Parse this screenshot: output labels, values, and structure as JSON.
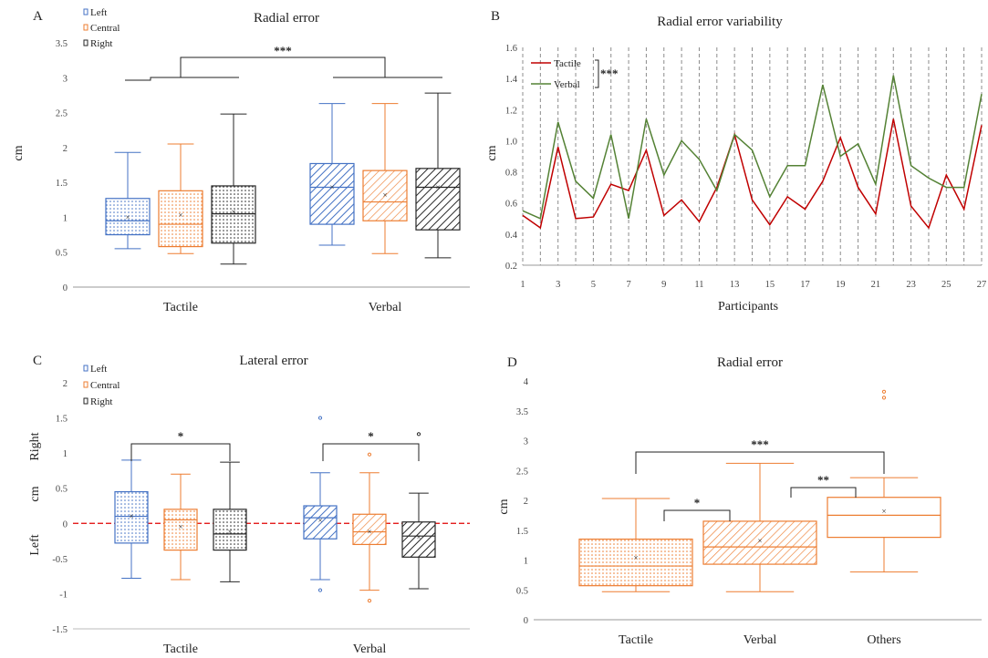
{
  "colors": {
    "left": "#4472c4",
    "central": "#ed7d31",
    "right": "#262626",
    "tactile": "#c00000",
    "verbal": "#548235",
    "zero_line": "#e00000"
  },
  "chart_data": [
    {
      "panel": "A",
      "type": "box",
      "title": "Radial error",
      "ylabel": "cm",
      "ylim": [
        0,
        3.5
      ],
      "yticks": [
        "0",
        "0.5",
        "1",
        "1.5",
        "2",
        "2.5",
        "3",
        "3.5"
      ],
      "categories": [
        "Tactile",
        "Verbal"
      ],
      "legend": [
        "Left",
        "Central",
        "Right"
      ],
      "series": [
        {
          "name": "Left",
          "boxes": [
            {
              "min": 0.55,
              "q1": 0.75,
              "median": 0.95,
              "q3": 1.27,
              "max": 1.93,
              "mean": 1.0
            },
            {
              "min": 0.6,
              "q1": 0.9,
              "median": 1.43,
              "q3": 1.77,
              "max": 2.63,
              "mean": 1.43
            }
          ]
        },
        {
          "name": "Central",
          "boxes": [
            {
              "min": 0.48,
              "q1": 0.58,
              "median": 0.9,
              "q3": 1.38,
              "max": 2.05,
              "mean": 1.03
            },
            {
              "min": 0.48,
              "q1": 0.95,
              "median": 1.22,
              "q3": 1.67,
              "max": 2.63,
              "mean": 1.32
            }
          ]
        },
        {
          "name": "Right",
          "boxes": [
            {
              "min": 0.33,
              "q1": 0.63,
              "median": 1.05,
              "q3": 1.45,
              "max": 2.48,
              "mean": 1.08
            },
            {
              "min": 0.42,
              "q1": 0.82,
              "median": 1.43,
              "q3": 1.7,
              "max": 2.78,
              "mean": 1.43
            }
          ]
        }
      ],
      "annotations": [
        "***"
      ]
    },
    {
      "panel": "B",
      "type": "line",
      "title": "Radial error variability",
      "xlabel": "Participants",
      "ylabel": "cm",
      "ylim": [
        0.2,
        1.6
      ],
      "yticks": [
        "0.2",
        "0.4",
        "0.6",
        "0.8",
        "1.0",
        "1.2",
        "1.4",
        "1.6"
      ],
      "xticks": [
        "1",
        "3",
        "5",
        "7",
        "9",
        "11",
        "13",
        "15",
        "17",
        "19",
        "21",
        "23",
        "25",
        "27"
      ],
      "x": [
        1,
        2,
        3,
        4,
        5,
        6,
        7,
        8,
        9,
        10,
        11,
        12,
        13,
        14,
        15,
        16,
        17,
        18,
        19,
        20,
        21,
        22,
        23,
        24,
        25,
        26,
        27
      ],
      "series": [
        {
          "name": "Tactile",
          "values": [
            0.52,
            0.44,
            0.96,
            0.5,
            0.51,
            0.72,
            0.68,
            0.94,
            0.52,
            0.62,
            0.48,
            0.7,
            1.04,
            0.62,
            0.46,
            0.64,
            0.56,
            0.74,
            1.02,
            0.7,
            0.53,
            1.14,
            0.58,
            0.44,
            0.78,
            0.56,
            1.1
          ]
        },
        {
          "name": "Verbal",
          "values": [
            0.55,
            0.5,
            1.12,
            0.74,
            0.63,
            1.04,
            0.5,
            1.14,
            0.78,
            1.0,
            0.88,
            0.68,
            1.04,
            0.94,
            0.64,
            0.84,
            0.84,
            1.36,
            0.9,
            0.98,
            0.72,
            1.42,
            0.84,
            0.76,
            0.7,
            0.7,
            1.3
          ]
        }
      ],
      "annotations": [
        "***"
      ]
    },
    {
      "panel": "C",
      "type": "box",
      "title": "Lateral error",
      "ylabel": "cm",
      "ylim": [
        -1.5,
        2
      ],
      "yticks": [
        "-1.5",
        "-1",
        "-0.5",
        "0",
        "0.5",
        "1",
        "1.5",
        "2"
      ],
      "side_labels": [
        "Right",
        "Left"
      ],
      "categories": [
        "Tactile",
        "Verbal"
      ],
      "legend": [
        "Left",
        "Central",
        "Right"
      ],
      "series": [
        {
          "name": "Left",
          "boxes": [
            {
              "min": -0.78,
              "q1": -0.28,
              "median": 0.1,
              "q3": 0.45,
              "max": 0.9,
              "mean": 0.1
            },
            {
              "min": -0.8,
              "q1": -0.22,
              "median": 0.08,
              "q3": 0.25,
              "max": 0.72,
              "mean": 0.04,
              "outliers": [
                1.5,
                -0.95
              ]
            }
          ]
        },
        {
          "name": "Central",
          "boxes": [
            {
              "min": -0.8,
              "q1": -0.38,
              "median": 0.05,
              "q3": 0.2,
              "max": 0.7,
              "mean": -0.05
            },
            {
              "min": -0.95,
              "q1": -0.3,
              "median": -0.12,
              "q3": 0.13,
              "max": 0.72,
              "mean": -0.12,
              "outliers": [
                0.98,
                -1.1
              ]
            }
          ]
        },
        {
          "name": "Right",
          "boxes": [
            {
              "min": -0.83,
              "q1": -0.38,
              "median": -0.15,
              "q3": 0.2,
              "max": 0.87,
              "mean": -0.12
            },
            {
              "min": -0.93,
              "q1": -0.48,
              "median": -0.18,
              "q3": 0.02,
              "max": 0.43,
              "mean": -0.2,
              "outliers": [
                1.27
              ]
            }
          ]
        }
      ],
      "annotations": [
        "*",
        "*"
      ]
    },
    {
      "panel": "D",
      "type": "box",
      "title": "Radial error",
      "ylabel": "cm",
      "ylim": [
        0,
        4
      ],
      "yticks": [
        "0",
        "0.5",
        "1",
        "1.5",
        "2",
        "2.5",
        "3",
        "3.5",
        "4"
      ],
      "categories": [
        "Tactile",
        "Verbal",
        "Others"
      ],
      "boxes": [
        {
          "min": 0.47,
          "q1": 0.57,
          "median": 0.9,
          "q3": 1.35,
          "max": 2.03,
          "mean": 1.04
        },
        {
          "min": 0.47,
          "q1": 0.93,
          "median": 1.22,
          "q3": 1.65,
          "max": 2.62,
          "mean": 1.32
        },
        {
          "min": 0.8,
          "q1": 1.38,
          "median": 1.75,
          "q3": 2.05,
          "max": 2.38,
          "mean": 1.82,
          "outliers": [
            3.72,
            3.82
          ]
        }
      ],
      "annotations": [
        "***",
        "*",
        "**"
      ]
    }
  ]
}
